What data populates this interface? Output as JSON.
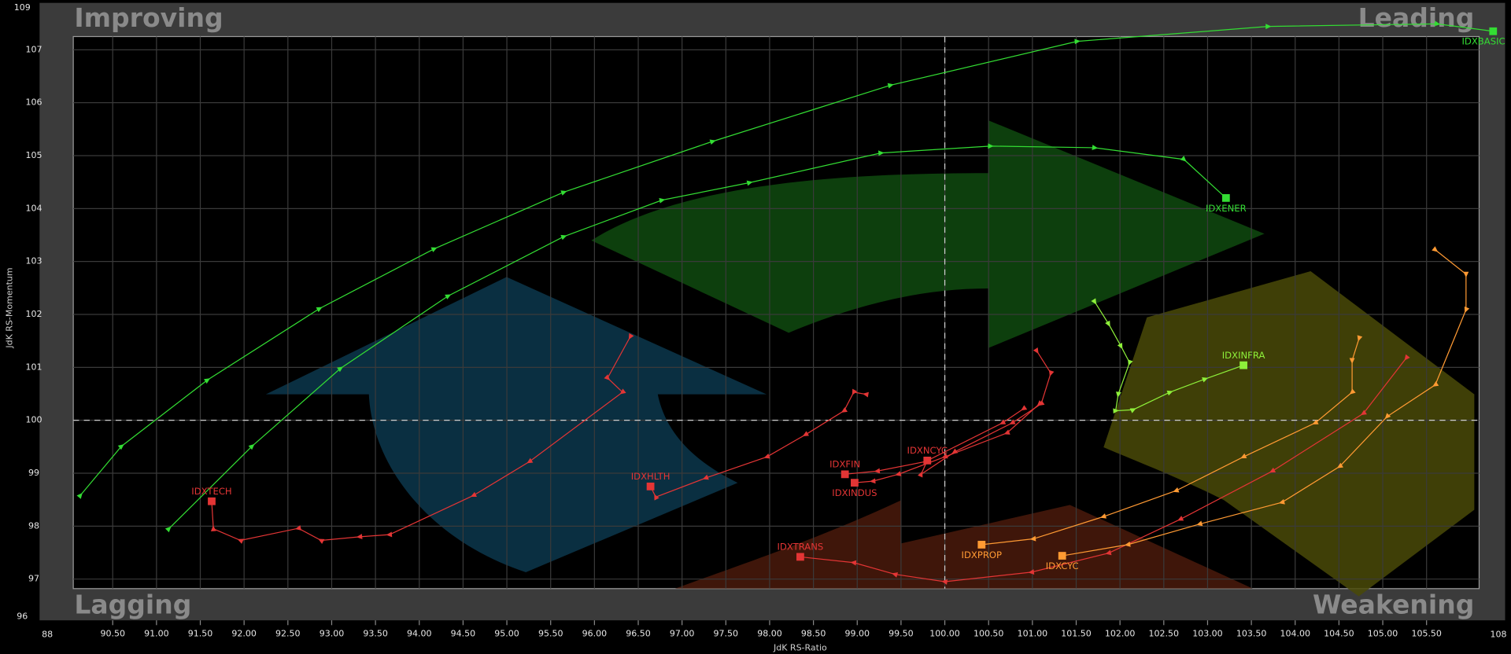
{
  "chart_data": {
    "type": "line",
    "x_label": "JdK RS-Ratio",
    "y_label": "JdK RS-Momentum",
    "quadrants": {
      "top_left": "Improving",
      "top_right": "Leading",
      "bottom_left": "Lagging",
      "bottom_right": "Weakening"
    },
    "x_edge_labels": [
      88,
      108
    ],
    "y_edge_labels": [
      109,
      96
    ],
    "xlim": [
      90.05,
      106.1
    ],
    "ylim": [
      96.82,
      107.25
    ],
    "center": [
      100,
      100
    ],
    "grid": true,
    "xticks": [
      {
        "value": 90.5,
        "label": "90.50"
      },
      {
        "value": 91,
        "label": "91.00"
      },
      {
        "value": 91.5,
        "label": "91.50"
      },
      {
        "value": 92,
        "label": "92.00"
      },
      {
        "value": 92.5,
        "label": "92.50"
      },
      {
        "value": 93,
        "label": "93.00"
      },
      {
        "value": 93.5,
        "label": "93.50"
      },
      {
        "value": 94,
        "label": "94.00"
      },
      {
        "value": 94.5,
        "label": "94.50"
      },
      {
        "value": 95,
        "label": "95.00"
      },
      {
        "value": 95.5,
        "label": "95.50"
      },
      {
        "value": 96,
        "label": "96.00"
      },
      {
        "value": 96.5,
        "label": "96.50"
      },
      {
        "value": 97,
        "label": "97.00"
      },
      {
        "value": 97.5,
        "label": "97.50"
      },
      {
        "value": 98,
        "label": "98.00"
      },
      {
        "value": 98.5,
        "label": "98.50"
      },
      {
        "value": 99,
        "label": "99.00"
      },
      {
        "value": 99.5,
        "label": "99.50"
      },
      {
        "value": 100,
        "label": "100.00"
      },
      {
        "value": 100.5,
        "label": "100.50"
      },
      {
        "value": 101,
        "label": "101.00"
      },
      {
        "value": 101.5,
        "label": "101.50"
      },
      {
        "value": 102,
        "label": "102.00"
      },
      {
        "value": 102.5,
        "label": "102.50"
      },
      {
        "value": 103,
        "label": "103.00"
      },
      {
        "value": 103.5,
        "label": "103.50"
      },
      {
        "value": 104,
        "label": "104.00"
      },
      {
        "value": 104.5,
        "label": "104.50"
      },
      {
        "value": 105,
        "label": "105.00"
      },
      {
        "value": 105.5,
        "label": "105.50"
      }
    ],
    "yticks": [
      97,
      98,
      99,
      100,
      101,
      102,
      103,
      104,
      105,
      106,
      107
    ],
    "series": [
      {
        "name": "IDXBASIC",
        "color": "#33dd33",
        "x": [
          90.13,
          90.6,
          91.58,
          92.86,
          94.17,
          95.65,
          97.35,
          99.38,
          101.51,
          103.69,
          105.62,
          106.26
        ],
        "values": [
          98.58,
          99.51,
          100.76,
          102.11,
          103.24,
          104.31,
          105.27,
          106.33,
          107.16,
          107.44,
          107.49,
          107.35
        ]
      },
      {
        "name": "IDXENER",
        "color": "#33dd33",
        "x": [
          91.14,
          92.09,
          93.1,
          94.33,
          95.65,
          96.77,
          97.77,
          99.27,
          100.52,
          101.71,
          102.73,
          103.21
        ],
        "values": [
          97.95,
          99.51,
          100.98,
          102.35,
          103.47,
          104.16,
          104.49,
          105.05,
          105.18,
          105.15,
          104.93,
          104.2
        ]
      },
      {
        "name": "IDXINFRA",
        "color": "#8ef03a",
        "x": [
          101.71,
          101.87,
          102.01,
          102.11,
          101.98,
          101.95,
          102.15,
          102.57,
          102.97,
          103.41
        ],
        "values": [
          102.24,
          101.82,
          101.4,
          101.09,
          100.49,
          100.18,
          100.2,
          100.53,
          100.78,
          101.04
        ]
      },
      {
        "name": "IDXTECH",
        "color": "#e33535",
        "x": [
          96.41,
          96.15,
          96.32,
          95.26,
          94.62,
          93.66,
          93.32,
          92.88,
          92.62,
          91.96,
          91.65,
          91.63
        ],
        "values": [
          101.58,
          100.8,
          100.53,
          99.22,
          98.58,
          97.84,
          97.8,
          97.73,
          97.96,
          97.73,
          97.95,
          98.47
        ]
      },
      {
        "name": "IDXHLTH",
        "color": "#e33535",
        "x": [
          99.1,
          98.96,
          98.85,
          98.41,
          97.97,
          97.27,
          96.7,
          96.64
        ],
        "values": [
          100.49,
          100.53,
          100.18,
          99.73,
          99.31,
          98.91,
          98.55,
          98.75
        ]
      },
      {
        "name": "IDXFIN",
        "color": "#e33535",
        "x": [
          100.9,
          100.66,
          99.78,
          99.23,
          98.86
        ],
        "values": [
          100.22,
          99.95,
          99.22,
          99.04,
          98.98
        ]
      },
      {
        "name": "IDXINDUS",
        "color": "#e33535",
        "x": [
          101.08,
          100.71,
          100.0,
          99.47,
          99.18,
          98.97
        ],
        "values": [
          100.31,
          99.76,
          99.31,
          98.98,
          98.85,
          98.82
        ]
      },
      {
        "name": "IDXNCYC",
        "color": "#e33535",
        "x": [
          101.05,
          101.21,
          101.1,
          100.77,
          100.11,
          99.73,
          99.8
        ],
        "values": [
          101.31,
          100.89,
          100.31,
          99.95,
          99.4,
          98.98,
          99.24
        ]
      },
      {
        "name": "IDXTRANS",
        "color": "#e33535",
        "x": [
          105.27,
          104.78,
          103.74,
          102.69,
          101.87,
          100.99,
          100.0,
          99.43,
          98.96,
          98.35
        ],
        "values": [
          101.18,
          100.13,
          99.04,
          98.13,
          97.49,
          97.13,
          96.95,
          97.09,
          97.31,
          97.42
        ]
      },
      {
        "name": "IDXPROP",
        "color": "#ff9a33",
        "x": [
          104.73,
          104.65,
          104.65,
          104.23,
          103.41,
          102.64,
          101.81,
          101.01,
          100.42
        ],
        "values": [
          101.55,
          101.13,
          100.53,
          99.95,
          99.31,
          98.67,
          98.18,
          97.76,
          97.65
        ]
      },
      {
        "name": "IDXCYC",
        "color": "#ff9a33",
        "x": [
          105.6,
          105.95,
          105.95,
          105.6,
          105.05,
          104.51,
          103.85,
          102.91,
          102.09,
          101.34
        ],
        "values": [
          103.22,
          102.76,
          102.09,
          100.67,
          100.07,
          99.13,
          98.45,
          98.04,
          97.65,
          97.44
        ]
      }
    ]
  }
}
